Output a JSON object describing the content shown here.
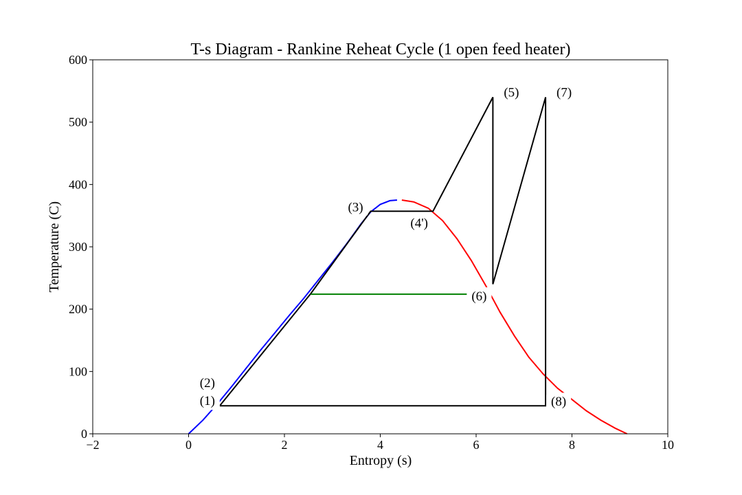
{
  "chart_data": {
    "type": "line",
    "title": "T-s Diagram - Rankine Reheat Cycle (1 open feed heater)",
    "xlabel": "Entropy (s)",
    "ylabel": "Temperature (C)",
    "xlim": [
      -2,
      10
    ],
    "ylim": [
      0,
      600
    ],
    "x_ticks": [
      -2,
      0,
      2,
      4,
      6,
      8,
      10
    ],
    "y_ticks": [
      0,
      100,
      200,
      300,
      400,
      500,
      600
    ],
    "x_tick_labels": [
      "−2",
      "0",
      "2",
      "4",
      "6",
      "8",
      "10"
    ],
    "y_tick_labels": [
      "0",
      "100",
      "200",
      "300",
      "400",
      "500",
      "600"
    ],
    "grid": false,
    "series": [
      {
        "key": "sat-liquid",
        "color": "#0000ff",
        "x": [
          0.0,
          0.3,
          0.6,
          0.9,
          1.2,
          1.5,
          1.8,
          2.1,
          2.4,
          2.7,
          3.0,
          3.3,
          3.6,
          3.8,
          4.0,
          4.2,
          4.35
        ],
        "y": [
          0,
          22,
          48,
          76,
          105,
          134,
          162,
          190,
          217,
          246,
          275,
          305,
          337,
          356,
          368,
          374,
          375
        ]
      },
      {
        "key": "sat-vapor",
        "color": "#ff0000",
        "x": [
          4.45,
          4.7,
          5.0,
          5.3,
          5.6,
          5.9,
          6.2,
          6.5,
          6.8,
          7.1,
          7.4,
          7.7,
          8.0,
          8.3,
          8.6,
          8.9,
          9.15
        ],
        "y": [
          375,
          372,
          362,
          342,
          313,
          278,
          238,
          195,
          157,
          123,
          96,
          73,
          55,
          37,
          22,
          9,
          0
        ]
      },
      {
        "key": "cycle",
        "color": "#000000",
        "x": [
          0.65,
          2.55,
          3.8,
          5.1,
          6.35,
          6.35,
          7.45,
          7.45,
          0.65
        ],
        "y": [
          45,
          225,
          357,
          357,
          540,
          240,
          540,
          45,
          45
        ]
      },
      {
        "key": "feedwater-heater-line",
        "color": "#008000",
        "x": [
          2.55,
          6.0
        ],
        "y": [
          224,
          224
        ]
      }
    ],
    "annotations": [
      {
        "text": "(1)",
        "x": 0.65,
        "y": 45
      },
      {
        "text": "(2)",
        "x": 0.65,
        "y": 45
      },
      {
        "text": "(3)",
        "x": 3.8,
        "y": 357
      },
      {
        "text": "(4')",
        "x": 5.1,
        "y": 357
      },
      {
        "text": "(5)",
        "x": 6.35,
        "y": 540
      },
      {
        "text": "(6)",
        "x": 6.35,
        "y": 224
      },
      {
        "text": "(7)",
        "x": 7.45,
        "y": 540
      },
      {
        "text": "(8)",
        "x": 7.45,
        "y": 45
      }
    ]
  }
}
